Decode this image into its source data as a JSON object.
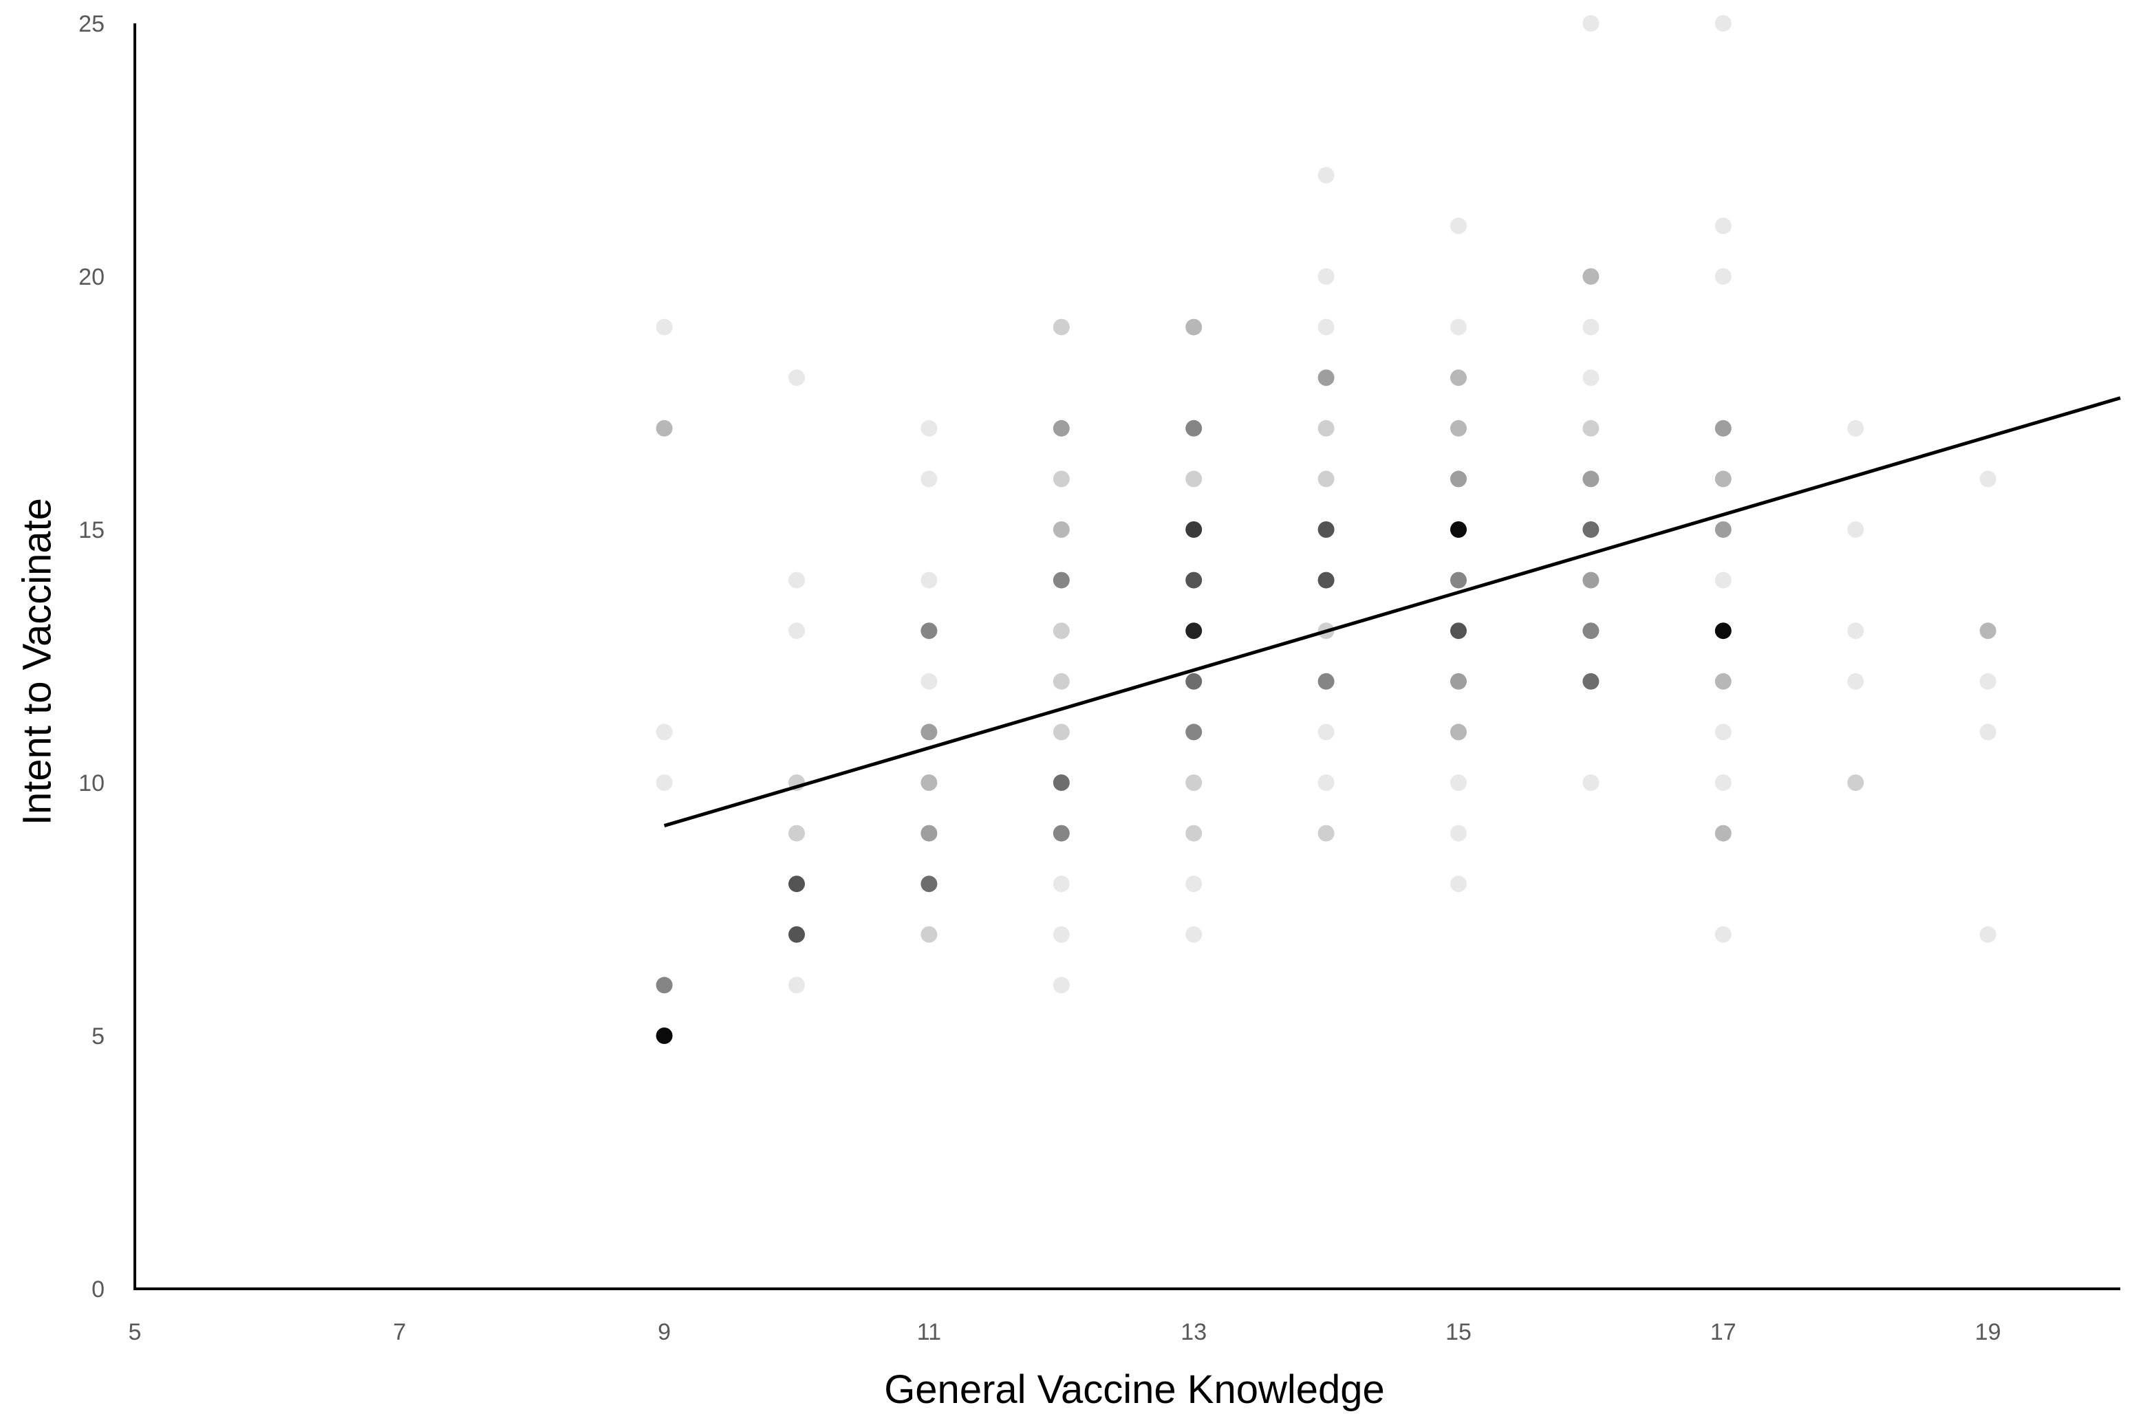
{
  "chart_data": {
    "type": "scatter",
    "title": "",
    "xlabel": "General Vaccine Knowledge",
    "ylabel": "Intent to Vaccinate",
    "xlim": [
      5,
      20
    ],
    "ylim": [
      0,
      25
    ],
    "x_ticks": [
      "5",
      "7",
      "9",
      "11",
      "13",
      "15",
      "17",
      "19"
    ],
    "y_ticks": [
      "0",
      "5",
      "10",
      "15",
      "20",
      "25"
    ],
    "grid": false,
    "legend": "none",
    "point_encoding": "darker shade = more overlapping responses (approximate count)",
    "points": [
      {
        "x": 9,
        "y": 19,
        "n": 1
      },
      {
        "x": 9,
        "y": 17,
        "n": 3
      },
      {
        "x": 9,
        "y": 11,
        "n": 1
      },
      {
        "x": 9,
        "y": 10,
        "n": 1
      },
      {
        "x": 9,
        "y": 6,
        "n": 5
      },
      {
        "x": 9,
        "y": 5,
        "n": 10
      },
      {
        "x": 10,
        "y": 18,
        "n": 1
      },
      {
        "x": 10,
        "y": 14,
        "n": 1
      },
      {
        "x": 10,
        "y": 13,
        "n": 1
      },
      {
        "x": 10,
        "y": 10,
        "n": 2
      },
      {
        "x": 10,
        "y": 9,
        "n": 2
      },
      {
        "x": 10,
        "y": 8,
        "n": 7
      },
      {
        "x": 10,
        "y": 7,
        "n": 7
      },
      {
        "x": 10,
        "y": 6,
        "n": 1
      },
      {
        "x": 11,
        "y": 17,
        "n": 1
      },
      {
        "x": 11,
        "y": 16,
        "n": 1
      },
      {
        "x": 11,
        "y": 14,
        "n": 1
      },
      {
        "x": 11,
        "y": 13,
        "n": 5
      },
      {
        "x": 11,
        "y": 12,
        "n": 1
      },
      {
        "x": 11,
        "y": 11,
        "n": 4
      },
      {
        "x": 11,
        "y": 10,
        "n": 3
      },
      {
        "x": 11,
        "y": 9,
        "n": 4
      },
      {
        "x": 11,
        "y": 8,
        "n": 6
      },
      {
        "x": 11,
        "y": 7,
        "n": 2
      },
      {
        "x": 12,
        "y": 19,
        "n": 2
      },
      {
        "x": 12,
        "y": 17,
        "n": 4
      },
      {
        "x": 12,
        "y": 16,
        "n": 2
      },
      {
        "x": 12,
        "y": 15,
        "n": 3
      },
      {
        "x": 12,
        "y": 14,
        "n": 5
      },
      {
        "x": 12,
        "y": 13,
        "n": 2
      },
      {
        "x": 12,
        "y": 12,
        "n": 2
      },
      {
        "x": 12,
        "y": 11,
        "n": 2
      },
      {
        "x": 12,
        "y": 10,
        "n": 6
      },
      {
        "x": 12,
        "y": 9,
        "n": 5
      },
      {
        "x": 12,
        "y": 8,
        "n": 1
      },
      {
        "x": 12,
        "y": 7,
        "n": 1
      },
      {
        "x": 12,
        "y": 6,
        "n": 1
      },
      {
        "x": 13,
        "y": 19,
        "n": 3
      },
      {
        "x": 13,
        "y": 17,
        "n": 5
      },
      {
        "x": 13,
        "y": 16,
        "n": 2
      },
      {
        "x": 13,
        "y": 15,
        "n": 8
      },
      {
        "x": 13,
        "y": 14,
        "n": 7
      },
      {
        "x": 13,
        "y": 13,
        "n": 9
      },
      {
        "x": 13,
        "y": 12,
        "n": 6
      },
      {
        "x": 13,
        "y": 11,
        "n": 5
      },
      {
        "x": 13,
        "y": 10,
        "n": 2
      },
      {
        "x": 13,
        "y": 9,
        "n": 2
      },
      {
        "x": 13,
        "y": 8,
        "n": 1
      },
      {
        "x": 13,
        "y": 7,
        "n": 1
      },
      {
        "x": 14,
        "y": 22,
        "n": 1
      },
      {
        "x": 14,
        "y": 20,
        "n": 1
      },
      {
        "x": 14,
        "y": 19,
        "n": 1
      },
      {
        "x": 14,
        "y": 18,
        "n": 4
      },
      {
        "x": 14,
        "y": 17,
        "n": 2
      },
      {
        "x": 14,
        "y": 16,
        "n": 2
      },
      {
        "x": 14,
        "y": 15,
        "n": 7
      },
      {
        "x": 14,
        "y": 14,
        "n": 7
      },
      {
        "x": 14,
        "y": 13,
        "n": 2
      },
      {
        "x": 14,
        "y": 12,
        "n": 5
      },
      {
        "x": 14,
        "y": 11,
        "n": 1
      },
      {
        "x": 14,
        "y": 10,
        "n": 1
      },
      {
        "x": 14,
        "y": 9,
        "n": 2
      },
      {
        "x": 15,
        "y": 21,
        "n": 1
      },
      {
        "x": 15,
        "y": 19,
        "n": 1
      },
      {
        "x": 15,
        "y": 18,
        "n": 3
      },
      {
        "x": 15,
        "y": 17,
        "n": 3
      },
      {
        "x": 15,
        "y": 16,
        "n": 4
      },
      {
        "x": 15,
        "y": 15,
        "n": 10
      },
      {
        "x": 15,
        "y": 14,
        "n": 5
      },
      {
        "x": 15,
        "y": 13,
        "n": 7
      },
      {
        "x": 15,
        "y": 12,
        "n": 4
      },
      {
        "x": 15,
        "y": 11,
        "n": 3
      },
      {
        "x": 15,
        "y": 10,
        "n": 1
      },
      {
        "x": 15,
        "y": 9,
        "n": 1
      },
      {
        "x": 15,
        "y": 8,
        "n": 1
      },
      {
        "x": 16,
        "y": 25,
        "n": 1
      },
      {
        "x": 16,
        "y": 20,
        "n": 3
      },
      {
        "x": 16,
        "y": 19,
        "n": 1
      },
      {
        "x": 16,
        "y": 18,
        "n": 1
      },
      {
        "x": 16,
        "y": 17,
        "n": 2
      },
      {
        "x": 16,
        "y": 16,
        "n": 4
      },
      {
        "x": 16,
        "y": 15,
        "n": 6
      },
      {
        "x": 16,
        "y": 14,
        "n": 4
      },
      {
        "x": 16,
        "y": 13,
        "n": 5
      },
      {
        "x": 16,
        "y": 12,
        "n": 6
      },
      {
        "x": 16,
        "y": 10,
        "n": 1
      },
      {
        "x": 17,
        "y": 25,
        "n": 1
      },
      {
        "x": 17,
        "y": 21,
        "n": 1
      },
      {
        "x": 17,
        "y": 20,
        "n": 1
      },
      {
        "x": 17,
        "y": 17,
        "n": 4
      },
      {
        "x": 17,
        "y": 16,
        "n": 3
      },
      {
        "x": 17,
        "y": 15,
        "n": 4
      },
      {
        "x": 17,
        "y": 14,
        "n": 1
      },
      {
        "x": 17,
        "y": 13,
        "n": 10
      },
      {
        "x": 17,
        "y": 12,
        "n": 3
      },
      {
        "x": 17,
        "y": 11,
        "n": 1
      },
      {
        "x": 17,
        "y": 10,
        "n": 1
      },
      {
        "x": 17,
        "y": 9,
        "n": 3
      },
      {
        "x": 17,
        "y": 7,
        "n": 1
      },
      {
        "x": 18,
        "y": 17,
        "n": 1
      },
      {
        "x": 18,
        "y": 15,
        "n": 1
      },
      {
        "x": 18,
        "y": 13,
        "n": 1
      },
      {
        "x": 18,
        "y": 12,
        "n": 1
      },
      {
        "x": 18,
        "y": 10,
        "n": 2
      },
      {
        "x": 19,
        "y": 16,
        "n": 1
      },
      {
        "x": 19,
        "y": 13,
        "n": 3
      },
      {
        "x": 19,
        "y": 12,
        "n": 1
      },
      {
        "x": 19,
        "y": 11,
        "n": 1
      },
      {
        "x": 19,
        "y": 7,
        "n": 1
      }
    ],
    "trendline": {
      "x": [
        9,
        20
      ],
      "y": [
        9.15,
        17.6
      ],
      "color": "#000000"
    }
  }
}
